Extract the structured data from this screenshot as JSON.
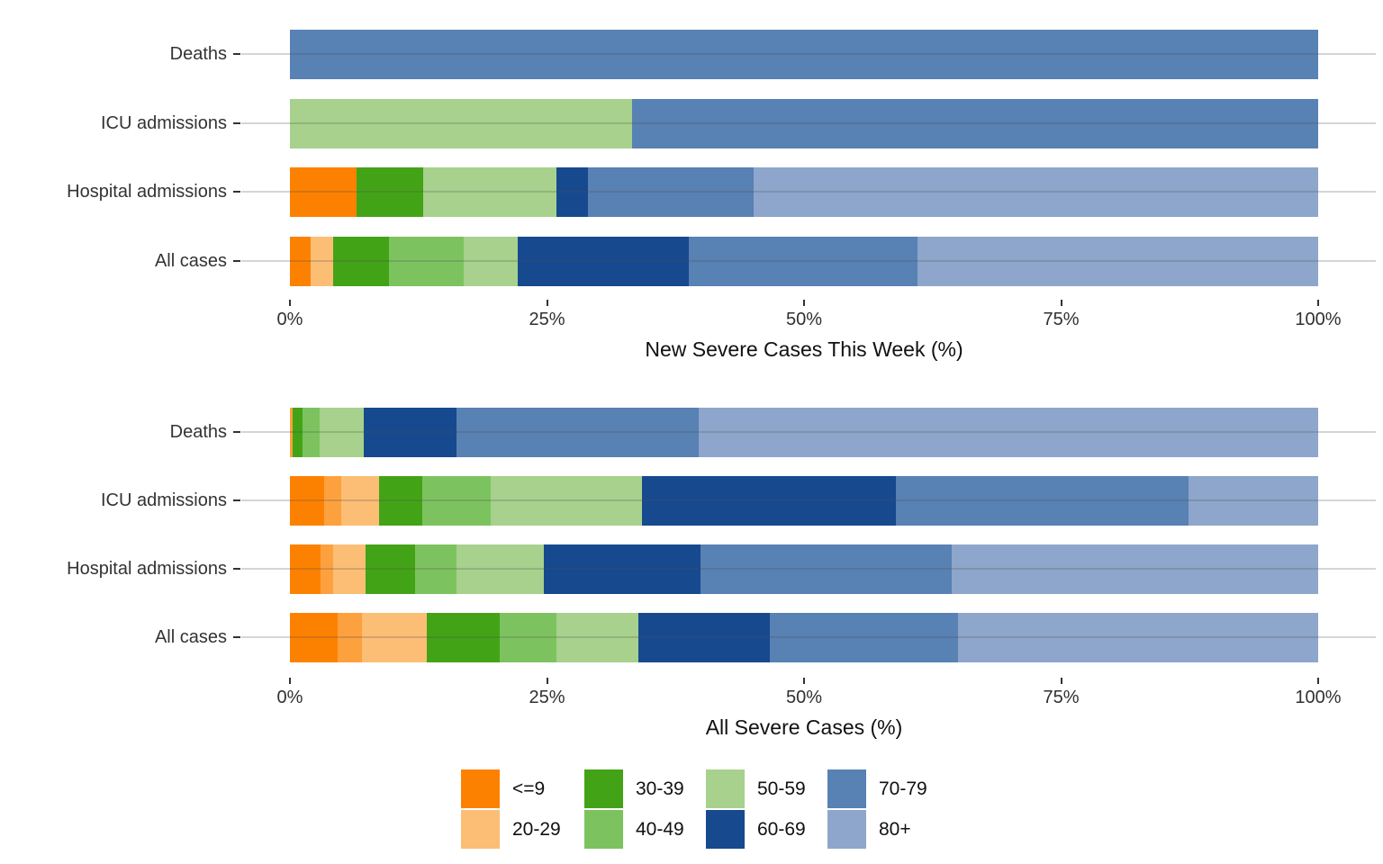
{
  "palette": {
    "<=9": "#FD8100",
    "10-19": "#FDA13F",
    "20-29": "#FCBE75",
    "30-39": "#43A317",
    "40-49": "#7CC35F",
    "50-59": "#A7D18C",
    "60-69": "#17498F",
    "70-79": "#5881B4",
    "80+": "#8EA6CB"
  },
  "legend": {
    "columns": [
      [
        "<=9",
        "20-29"
      ],
      [
        "30-39",
        "40-49"
      ],
      [
        "50-59",
        "60-69"
      ],
      [
        "70-79",
        "80+"
      ]
    ]
  },
  "chart_data": [
    {
      "type": "bar",
      "orientation": "horizontal_stacked",
      "title": "New Severe Cases This Week (%)",
      "xlabel": "New Severe Cases This Week (%)",
      "xlim": [
        0,
        100
      ],
      "x_ticks": [
        "0%",
        "25%",
        "50%",
        "75%",
        "100%"
      ],
      "x_tick_values": [
        0,
        25,
        50,
        75,
        100
      ],
      "grid": "horizontal_per_category",
      "legend_position": "bottom",
      "categories": [
        "Deaths",
        "ICU admissions",
        "Hospital admissions",
        "All cases"
      ],
      "bars": [
        {
          "category": "Deaths",
          "segments": [
            {
              "group": "70-79",
              "pct": 100
            }
          ]
        },
        {
          "category": "ICU admissions",
          "segments": [
            {
              "group": "50-59",
              "pct": 33.3
            },
            {
              "group": "70-79",
              "pct": 66.7
            }
          ]
        },
        {
          "category": "Hospital admissions",
          "segments": [
            {
              "group": "<=9",
              "pct": 6.5
            },
            {
              "group": "30-39",
              "pct": 6.5
            },
            {
              "group": "50-59",
              "pct": 12.9
            },
            {
              "group": "60-69",
              "pct": 3.1
            },
            {
              "group": "70-79",
              "pct": 16.1
            },
            {
              "group": "80+",
              "pct": 54.9
            }
          ]
        },
        {
          "category": "All cases",
          "segments": [
            {
              "group": "<=9",
              "pct": 2.0
            },
            {
              "group": "20-29",
              "pct": 2.2
            },
            {
              "group": "30-39",
              "pct": 5.4
            },
            {
              "group": "40-49",
              "pct": 7.3
            },
            {
              "group": "50-59",
              "pct": 5.3
            },
            {
              "group": "60-69",
              "pct": 16.6
            },
            {
              "group": "70-79",
              "pct": 22.2
            },
            {
              "group": "80+",
              "pct": 39.0
            }
          ]
        }
      ]
    },
    {
      "type": "bar",
      "orientation": "horizontal_stacked",
      "title": "All Severe Cases (%)",
      "xlabel": "All Severe Cases (%)",
      "xlim": [
        0,
        100
      ],
      "x_ticks": [
        "0%",
        "25%",
        "50%",
        "75%",
        "100%"
      ],
      "x_tick_values": [
        0,
        25,
        50,
        75,
        100
      ],
      "grid": "horizontal_per_category",
      "legend_position": "bottom",
      "categories": [
        "Deaths",
        "ICU admissions",
        "Hospital admissions",
        "All cases"
      ],
      "bars": [
        {
          "category": "Deaths",
          "segments": [
            {
              "group": "10-19",
              "pct": 0.3
            },
            {
              "group": "30-39",
              "pct": 0.9
            },
            {
              "group": "40-49",
              "pct": 1.7
            },
            {
              "group": "50-59",
              "pct": 4.3
            },
            {
              "group": "60-69",
              "pct": 9.0
            },
            {
              "group": "70-79",
              "pct": 23.6
            },
            {
              "group": "80+",
              "pct": 60.2
            }
          ]
        },
        {
          "category": "ICU admissions",
          "segments": [
            {
              "group": "<=9",
              "pct": 3.3
            },
            {
              "group": "10-19",
              "pct": 1.7
            },
            {
              "group": "20-29",
              "pct": 3.7
            },
            {
              "group": "30-39",
              "pct": 4.2
            },
            {
              "group": "40-49",
              "pct": 6.6
            },
            {
              "group": "50-59",
              "pct": 14.7
            },
            {
              "group": "60-69",
              "pct": 24.7
            },
            {
              "group": "70-79",
              "pct": 28.5
            },
            {
              "group": "80+",
              "pct": 12.6
            }
          ]
        },
        {
          "category": "Hospital admissions",
          "segments": [
            {
              "group": "<=9",
              "pct": 3.0
            },
            {
              "group": "10-19",
              "pct": 1.2
            },
            {
              "group": "20-29",
              "pct": 3.2
            },
            {
              "group": "30-39",
              "pct": 4.8
            },
            {
              "group": "40-49",
              "pct": 4.0
            },
            {
              "group": "50-59",
              "pct": 8.5
            },
            {
              "group": "60-69",
              "pct": 15.2
            },
            {
              "group": "70-79",
              "pct": 24.5
            },
            {
              "group": "80+",
              "pct": 35.6
            }
          ]
        },
        {
          "category": "All cases",
          "segments": [
            {
              "group": "<=9",
              "pct": 4.6
            },
            {
              "group": "10-19",
              "pct": 2.4
            },
            {
              "group": "20-29",
              "pct": 6.3
            },
            {
              "group": "30-39",
              "pct": 7.1
            },
            {
              "group": "40-49",
              "pct": 5.5
            },
            {
              "group": "50-59",
              "pct": 8.0
            },
            {
              "group": "60-69",
              "pct": 12.8
            },
            {
              "group": "70-79",
              "pct": 18.3
            },
            {
              "group": "80+",
              "pct": 35.0
            }
          ]
        }
      ]
    }
  ]
}
